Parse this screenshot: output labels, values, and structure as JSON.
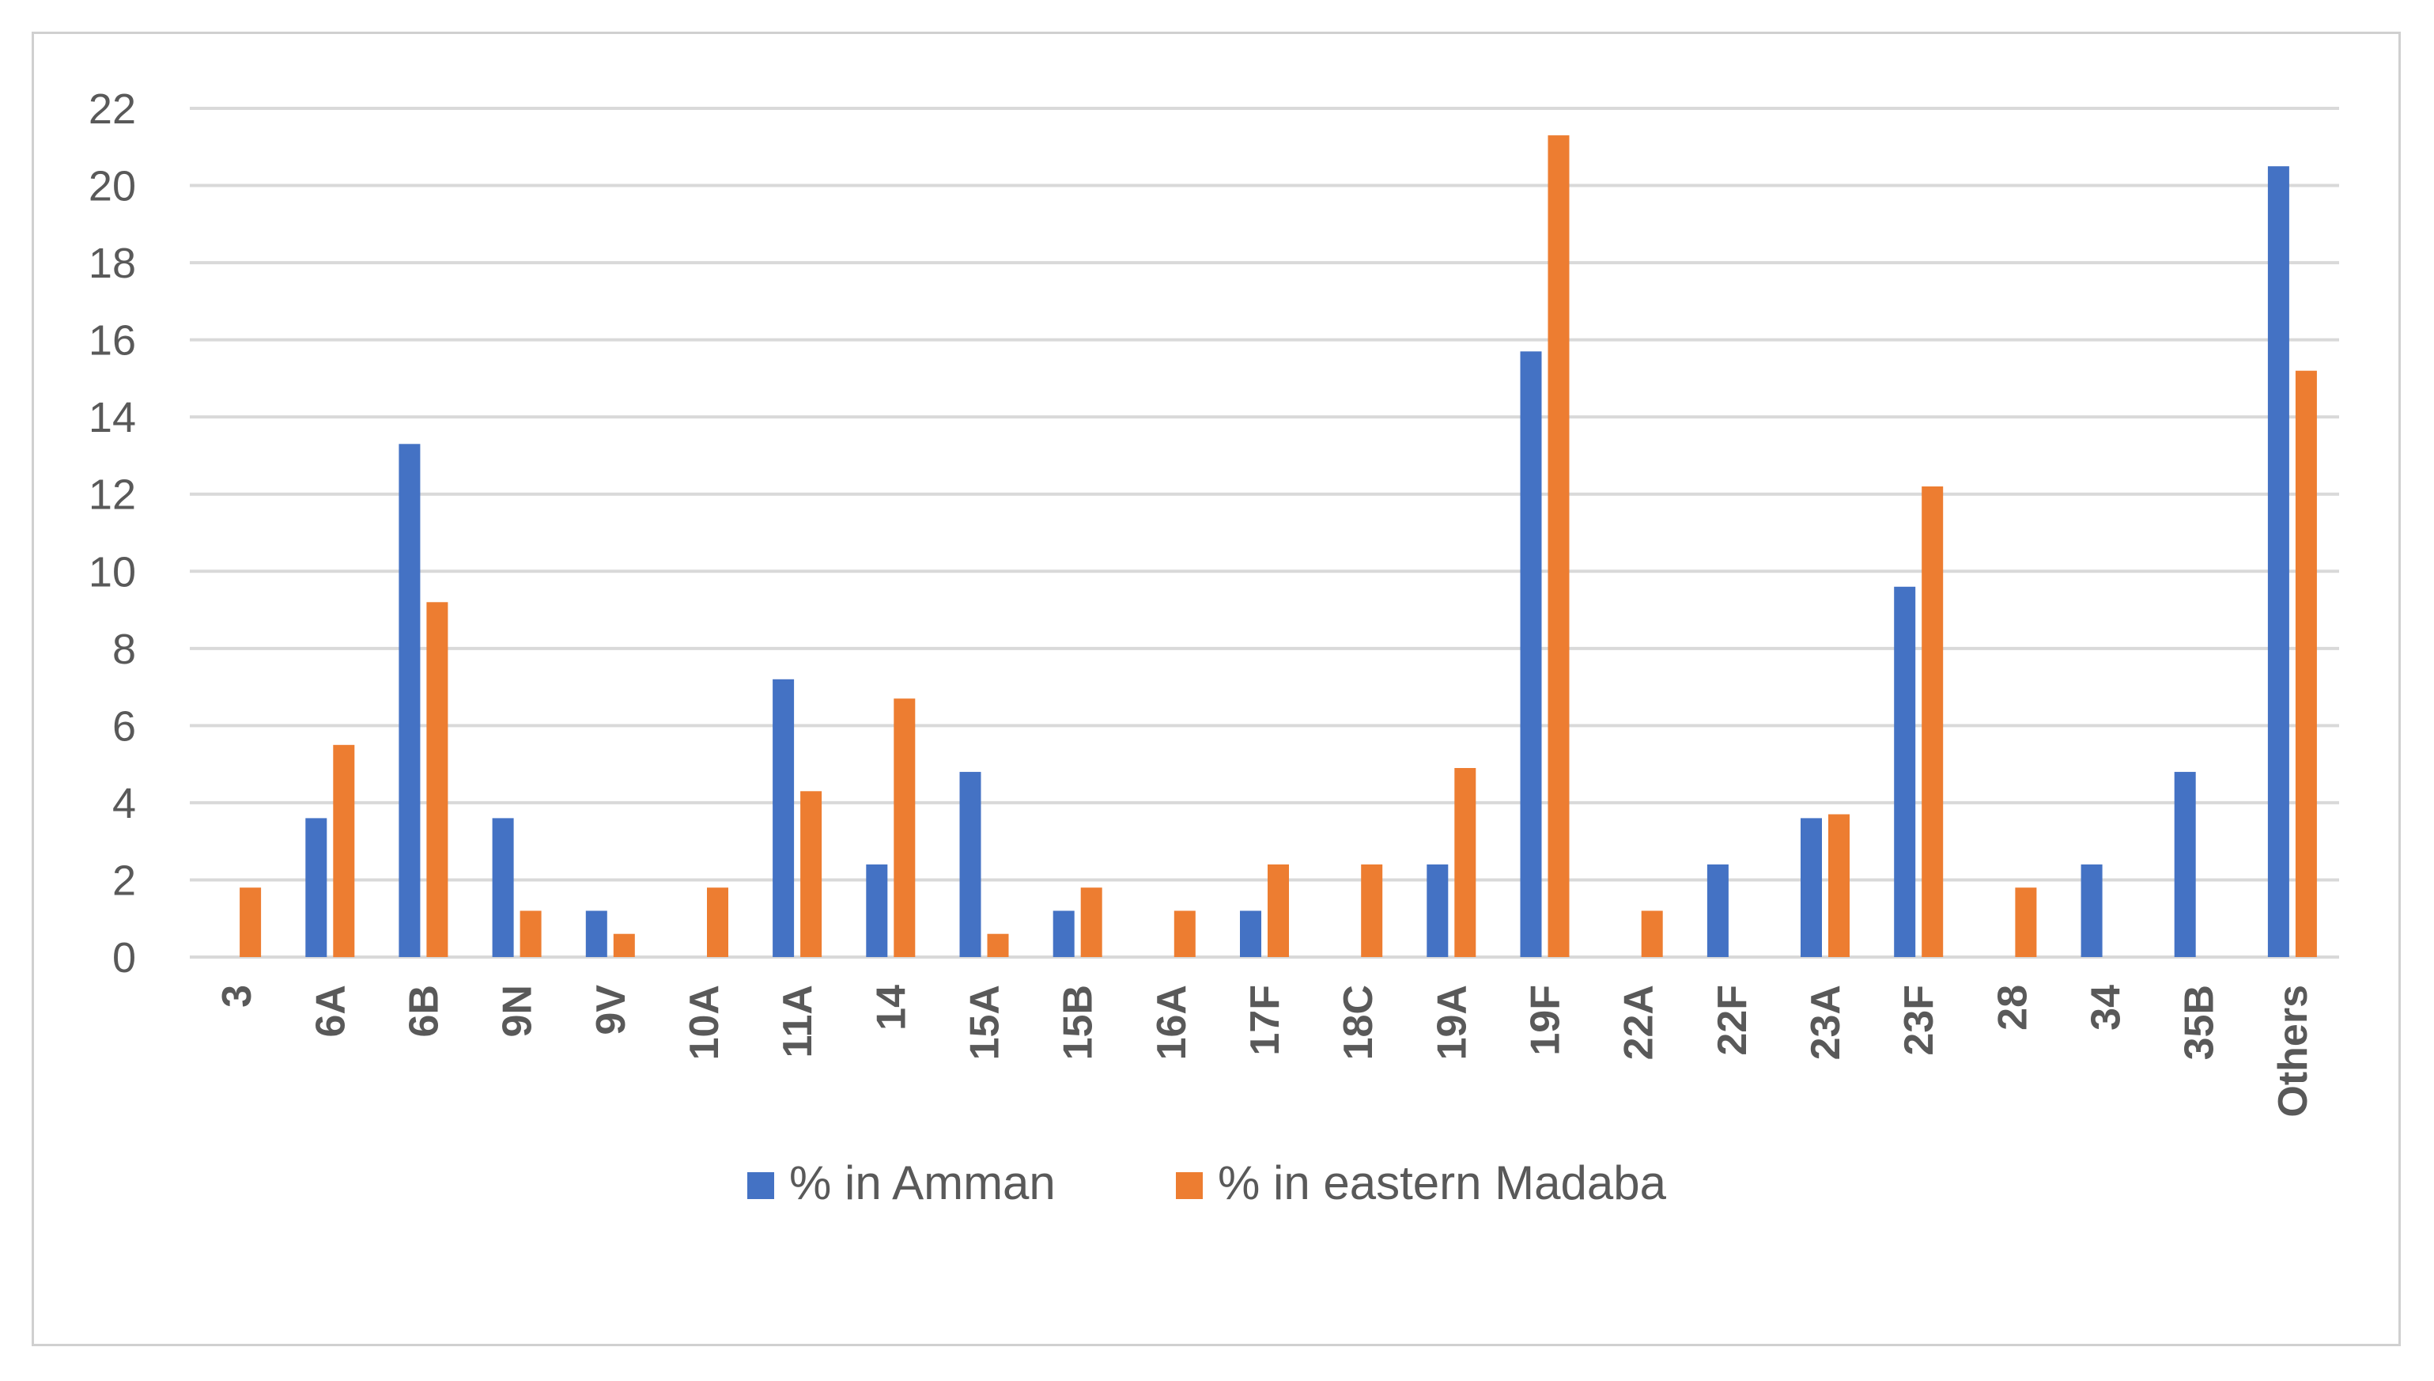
{
  "chart_data": {
    "type": "bar",
    "title": "",
    "xlabel": "",
    "ylabel": "",
    "ylim": [
      0,
      22
    ],
    "yticks": [
      0,
      2,
      4,
      6,
      8,
      10,
      12,
      14,
      16,
      18,
      20,
      22
    ],
    "grid": true,
    "legend_position": "bottom",
    "categories": [
      "3",
      "6A",
      "6B",
      "9N",
      "9V",
      "10A",
      "11A",
      "14",
      "15A",
      "15B",
      "16A",
      "17F",
      "18C",
      "19A",
      "19F",
      "22A",
      "22F",
      "23A",
      "23F",
      "28",
      "34",
      "35B",
      "Others"
    ],
    "series": [
      {
        "name": "% in Amman",
        "color": "#4472C4",
        "values": [
          0,
          3.6,
          13.3,
          3.6,
          1.2,
          0,
          7.2,
          2.4,
          4.8,
          1.2,
          0,
          1.2,
          0,
          2.4,
          15.7,
          0,
          2.4,
          3.6,
          9.6,
          0,
          2.4,
          4.8,
          20.5
        ]
      },
      {
        "name": "% in eastern Madaba",
        "color": "#ED7D31",
        "values": [
          1.8,
          5.5,
          9.2,
          1.2,
          0.6,
          1.8,
          4.3,
          6.7,
          0.6,
          1.8,
          1.2,
          2.4,
          2.4,
          4.9,
          21.3,
          1.2,
          0,
          3.7,
          12.2,
          1.8,
          0,
          0,
          15.2
        ]
      }
    ]
  }
}
